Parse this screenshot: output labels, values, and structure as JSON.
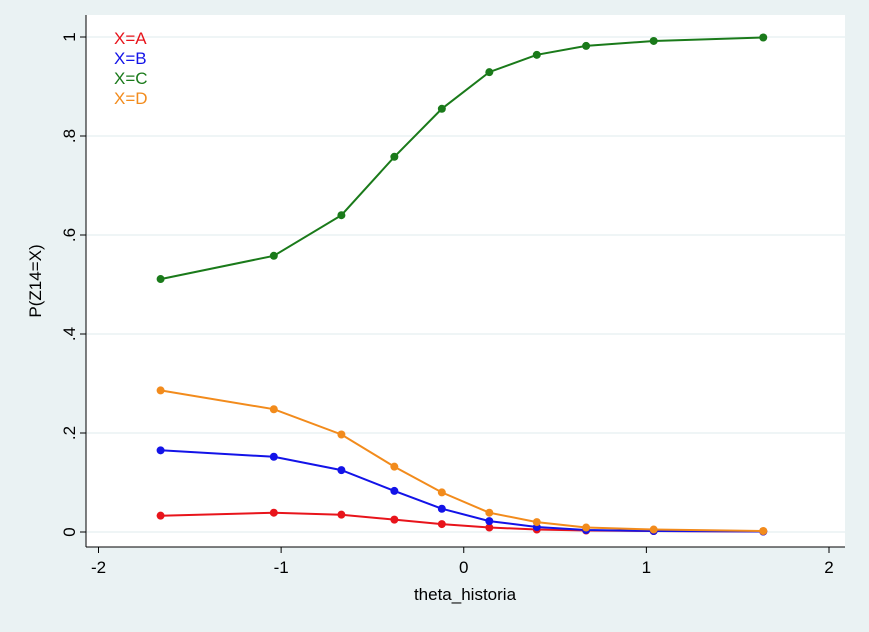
{
  "chart_data": {
    "type": "line",
    "title": "",
    "xlabel": "theta_historia",
    "ylabel": "P(Z14=X)",
    "xlim": [
      -2,
      2
    ],
    "ylim": [
      0,
      1
    ],
    "x_ticks": [
      {
        "value": -2,
        "label": "-2"
      },
      {
        "value": -1,
        "label": "-1"
      },
      {
        "value": 0,
        "label": "0"
      },
      {
        "value": 1,
        "label": "1"
      },
      {
        "value": 2,
        "label": "2"
      }
    ],
    "y_ticks": [
      {
        "value": 0,
        "label": "0"
      },
      {
        "value": 0.2,
        "label": ".2"
      },
      {
        "value": 0.4,
        "label": ".4"
      },
      {
        "value": 0.6,
        "label": ".6"
      },
      {
        "value": 0.8,
        "label": ".8"
      },
      {
        "value": 1,
        "label": "1"
      }
    ],
    "grid": true,
    "legend_position": "top-left",
    "x": [
      -1.66,
      -1.04,
      -0.67,
      -0.38,
      -0.12,
      0.14,
      0.4,
      0.67,
      1.04,
      1.64
    ],
    "series": [
      {
        "name": "X=A",
        "color": "#e8141b",
        "values": [
          0.033,
          0.039,
          0.035,
          0.025,
          0.016,
          0.009,
          0.005,
          0.003,
          0.002,
          0.001
        ]
      },
      {
        "name": "X=B",
        "color": "#1313e8",
        "values": [
          0.165,
          0.152,
          0.125,
          0.083,
          0.047,
          0.022,
          0.01,
          0.004,
          0.002,
          0.001
        ]
      },
      {
        "name": "X=C",
        "color": "#1a7a1a",
        "values": [
          0.511,
          0.558,
          0.64,
          0.758,
          0.855,
          0.929,
          0.964,
          0.982,
          0.992,
          0.999
        ]
      },
      {
        "name": "X=D",
        "color": "#f28b1c",
        "values": [
          0.286,
          0.248,
          0.197,
          0.132,
          0.08,
          0.039,
          0.02,
          0.009,
          0.005,
          0.002
        ]
      }
    ]
  }
}
